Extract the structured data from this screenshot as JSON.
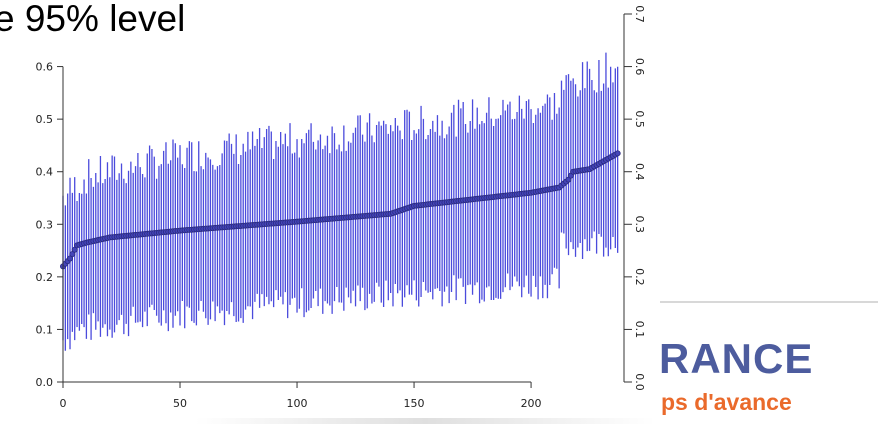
{
  "header": {
    "title": "e 95% level"
  },
  "logo": {
    "text": "RANCE",
    "tagline": "ps d'avance",
    "text_color": "#4d5c9e",
    "tagline_color": "#ea6a2b"
  },
  "chart_data": {
    "type": "scatter",
    "title": "e 95% level",
    "xlabel": "",
    "ylabel": "",
    "xlim": [
      0,
      238
    ],
    "ylim": [
      0,
      0.7
    ],
    "x_ticks": [
      0,
      50,
      100,
      150,
      200
    ],
    "y_ticks": [
      0.0,
      0.1,
      0.2,
      0.3,
      0.4,
      0.5,
      0.6
    ],
    "y_tick_labels": [
      "0.0",
      "0.1",
      "0.2",
      "0.3",
      "0.4",
      "0.5",
      "0.6"
    ],
    "y2_ticks": [
      0.0,
      0.1,
      0.2,
      0.3,
      0.4,
      0.5,
      0.6,
      0.7
    ],
    "y2_tick_labels": [
      "0.0",
      "0.1",
      "0.2",
      "0.3",
      "0.4",
      "0.5",
      "0.6",
      "0.7"
    ],
    "n_points": 238,
    "estimate_curve": [
      [
        0,
        0.22
      ],
      [
        3,
        0.235
      ],
      [
        6,
        0.26
      ],
      [
        10,
        0.265
      ],
      [
        20,
        0.275
      ],
      [
        50,
        0.288
      ],
      [
        100,
        0.305
      ],
      [
        140,
        0.32
      ],
      [
        150,
        0.335
      ],
      [
        200,
        0.36
      ],
      [
        212,
        0.37
      ],
      [
        216,
        0.385
      ],
      [
        218,
        0.4
      ],
      [
        225,
        0.405
      ],
      [
        237,
        0.435
      ]
    ],
    "lower_bound_curve": [
      [
        0,
        0.08
      ],
      [
        8,
        0.1
      ],
      [
        50,
        0.13
      ],
      [
        100,
        0.15
      ],
      [
        150,
        0.17
      ],
      [
        212,
        0.19
      ],
      [
        213,
        0.26
      ],
      [
        237,
        0.27
      ]
    ],
    "upper_bound_curve": [
      [
        0,
        0.35
      ],
      [
        10,
        0.39
      ],
      [
        50,
        0.43
      ],
      [
        100,
        0.46
      ],
      [
        150,
        0.49
      ],
      [
        212,
        0.53
      ],
      [
        213,
        0.56
      ],
      [
        237,
        0.6
      ]
    ],
    "grid": false,
    "colors": {
      "interval": "#4b4bdc",
      "point_stroke": "#2a2a80",
      "point_fill": "#4545b8"
    }
  }
}
